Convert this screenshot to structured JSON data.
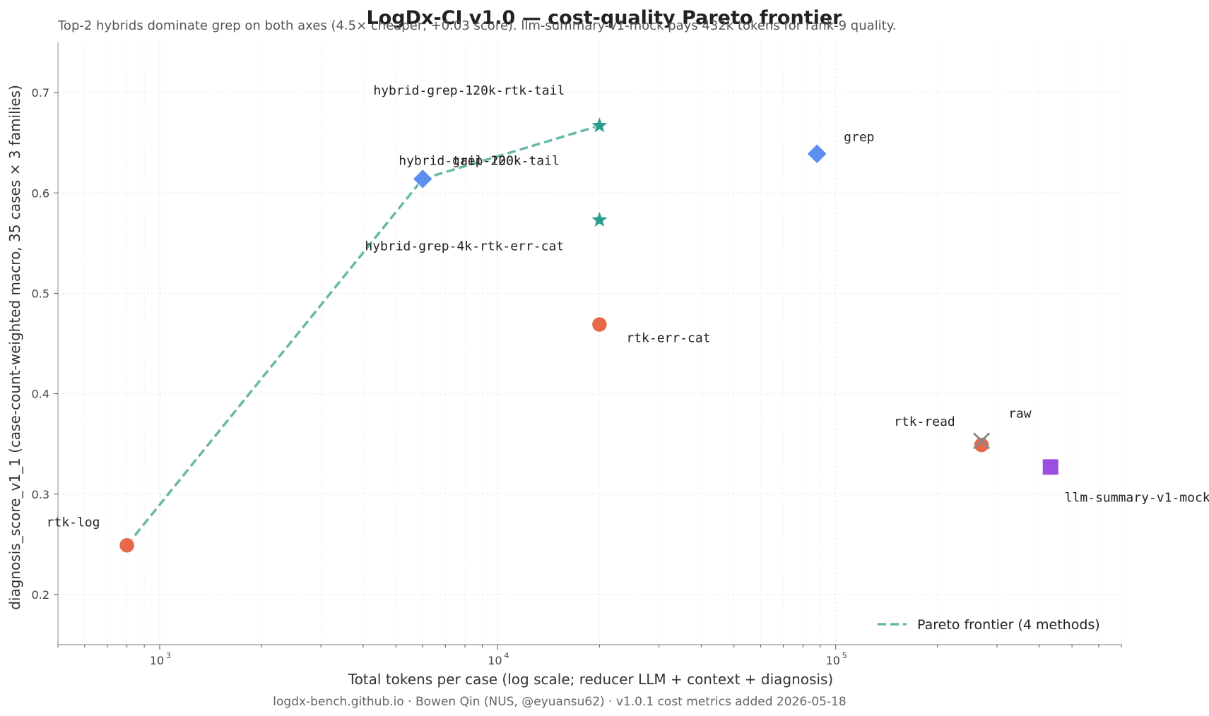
{
  "chart_data": {
    "type": "scatter",
    "title": "LogDx-CI v1.0  —  cost-quality Pareto frontier",
    "subtitle": "Top-2 hybrids dominate grep on both axes (4.5× cheaper, +0.03 score). llm-summary-v1-mock pays 432k tokens for rank-9 quality.",
    "xlabel": "Total tokens per case  (log scale; reducer LLM + context + diagnosis)",
    "ylabel": "diagnosis_score_v1_1  (case-count-weighted macro, 35 cases × 3 families)",
    "xscale": "log",
    "xlim": [
      500,
      700000
    ],
    "ylim": [
      0.15,
      0.75
    ],
    "x_ticks": [
      {
        "value": 1000,
        "label": "10",
        "exp": "3"
      },
      {
        "value": 10000,
        "label": "10",
        "exp": "4"
      },
      {
        "value": 100000,
        "label": "10",
        "exp": "5"
      }
    ],
    "y_ticks": [
      {
        "value": 0.2,
        "label": "0.2"
      },
      {
        "value": 0.3,
        "label": "0.3"
      },
      {
        "value": 0.4,
        "label": "0.4"
      },
      {
        "value": 0.5,
        "label": "0.5"
      },
      {
        "value": 0.6,
        "label": "0.6"
      },
      {
        "value": 0.7,
        "label": "0.7"
      }
    ],
    "grid": true,
    "colors": {
      "reducer": "#e8684a",
      "hybrid": "#2a9d8f",
      "filter": "#5b8ff0",
      "llm": "#9b4fe0",
      "raw": "#888888",
      "frontier": "#66b8aa"
    },
    "points": [
      {
        "name": "rtk-log",
        "x": 800,
        "y": 0.249,
        "marker": "circle",
        "color": "#e8684a"
      },
      {
        "name": "hybrid-grep-120k-rtk-tail",
        "x": 20000,
        "y": 0.667,
        "marker": "star",
        "color": "#2a9d8f"
      },
      {
        "name": "hybrid-grep-4k-rtk-err-cat",
        "x": 20000,
        "y": 0.573,
        "marker": "star",
        "color": "#2a9d8f"
      },
      {
        "name": "hybrid-grep-120k-tail",
        "x": 6000,
        "y": 0.614,
        "marker": "diamond",
        "color": "#5b8ff0"
      },
      {
        "name": "tail-200",
        "x": 6000,
        "y": 0.614,
        "marker": "diamond",
        "color": "#5b8ff0"
      },
      {
        "name": "grep",
        "x": 88000,
        "y": 0.639,
        "marker": "diamond",
        "color": "#5b8ff0"
      },
      {
        "name": "rtk-err-cat",
        "x": 20000,
        "y": 0.469,
        "marker": "circle",
        "color": "#e8684a"
      },
      {
        "name": "rtk-read",
        "x": 270000,
        "y": 0.349,
        "marker": "circle",
        "color": "#e8684a"
      },
      {
        "name": "raw",
        "x": 270000,
        "y": 0.353,
        "marker": "x",
        "color": "#888888"
      },
      {
        "name": "llm-summary-v1-mock",
        "x": 432000,
        "y": 0.327,
        "marker": "square",
        "color": "#9b4fe0"
      }
    ],
    "frontier": {
      "name": "Pareto frontier (4 methods)",
      "points": [
        {
          "x": 800,
          "y": 0.249
        },
        {
          "x": 6000,
          "y": 0.614
        },
        {
          "x": 20000,
          "y": 0.667
        }
      ]
    },
    "legend_position": "bottom-right"
  },
  "footer": "logdx-bench.github.io  ·  Bowen Qin (NUS, @eyuansu62)  ·  v1.0.1 cost metrics added 2026-05-18"
}
